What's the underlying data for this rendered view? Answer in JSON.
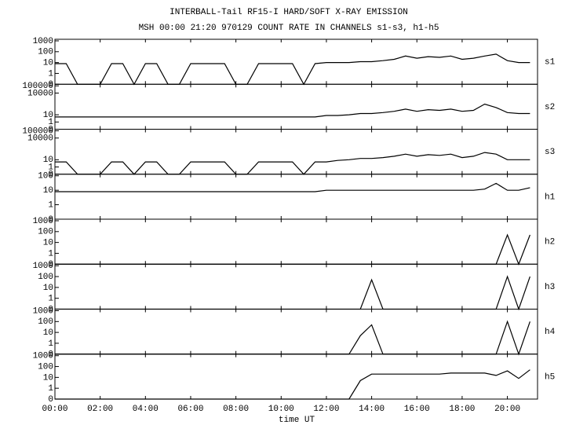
{
  "chart_data": {
    "type": "line",
    "title": "INTERBALL-Tail RF15-I HARD/SOFT X-RAY EMISSION",
    "subtitle": "MSH 00:00 21:20 970129  COUNT RATE IN CHANNELS s1-s3, h1-h5",
    "x_label": "time UT",
    "log_scale": true,
    "xlim": [
      0,
      21.333
    ],
    "xticks": [
      {
        "value": 0,
        "label": "00:00"
      },
      {
        "value": 2,
        "label": "02:00"
      },
      {
        "value": 4,
        "label": "04:00"
      },
      {
        "value": 6,
        "label": "06:00"
      },
      {
        "value": 8,
        "label": "08:00"
      },
      {
        "value": 10,
        "label": "10:00"
      },
      {
        "value": 12,
        "label": "12:00"
      },
      {
        "value": 14,
        "label": "14:00"
      },
      {
        "value": 16,
        "label": "16:00"
      },
      {
        "value": 18,
        "label": "18:00"
      },
      {
        "value": 20,
        "label": "20:00"
      }
    ],
    "x": [
      0,
      0.5,
      1,
      1.5,
      2,
      2.5,
      3,
      3.5,
      4,
      4.5,
      5,
      5.5,
      6,
      6.5,
      7,
      7.5,
      8,
      8.5,
      9,
      9.5,
      10,
      10.5,
      11,
      11.5,
      12,
      12.5,
      13,
      13.5,
      14,
      14.5,
      15,
      15.5,
      16,
      16.5,
      17,
      17.5,
      18,
      18.5,
      19,
      19.5,
      20,
      20.5,
      21
    ],
    "panels": [
      {
        "ylim": [
          0,
          1000
        ],
        "yticks": [
          0,
          1,
          10,
          100,
          1000
        ],
        "series": [
          {
            "name": "s1",
            "color": "#000000",
            "values": [
              8,
              8,
              0,
              0,
              0,
              8,
              8,
              0,
              8,
              8,
              0,
              0,
              8,
              8,
              8,
              8,
              0,
              0,
              8,
              8,
              8,
              8,
              0,
              8,
              10,
              10,
              10,
              12,
              12,
              15,
              20,
              40,
              25,
              35,
              30,
              40,
              20,
              25,
              40,
              60,
              15,
              10,
              10
            ]
          }
        ]
      },
      {
        "ylim": [
          0,
          100000
        ],
        "yticks": [
          0,
          1,
          10,
          10000,
          100000
        ],
        "series": [
          {
            "name": "s2",
            "color": "#000000",
            "values": [
              5,
              5,
              5,
              5,
              5,
              5,
              5,
              5,
              5,
              5,
              5,
              5,
              5,
              5,
              5,
              5,
              5,
              5,
              5,
              5,
              5,
              5,
              5,
              5,
              8,
              8,
              10,
              15,
              15,
              20,
              30,
              60,
              30,
              50,
              40,
              60,
              30,
              40,
              300,
              100,
              20,
              15,
              15
            ]
          }
        ]
      },
      {
        "ylim": [
          0,
          100000
        ],
        "yticks": [
          0,
          1,
          10,
          10000,
          100000
        ],
        "series": [
          {
            "name": "s3",
            "color": "#000000",
            "values": [
              5,
              5,
              0,
              0,
              0,
              5,
              5,
              0,
              5,
              5,
              0,
              0,
              5,
              5,
              5,
              5,
              0,
              0,
              5,
              5,
              5,
              5,
              0,
              5,
              5,
              8,
              10,
              15,
              15,
              20,
              30,
              60,
              30,
              50,
              40,
              60,
              20,
              30,
              100,
              60,
              10,
              10,
              10
            ]
          }
        ]
      },
      {
        "ylim": [
          0,
          100
        ],
        "yticks": [
          0,
          1,
          10,
          100
        ],
        "series": [
          {
            "name": "h1",
            "color": "#000000",
            "values": [
              8,
              8,
              8,
              8,
              8,
              8,
              8,
              8,
              8,
              8,
              8,
              8,
              8,
              8,
              8,
              8,
              8,
              8,
              8,
              8,
              8,
              8,
              8,
              8,
              10,
              10,
              10,
              10,
              10,
              10,
              10,
              10,
              10,
              10,
              10,
              10,
              10,
              10,
              12,
              30,
              10,
              10,
              15
            ]
          }
        ]
      },
      {
        "ylim": [
          0,
          1000
        ],
        "yticks": [
          0,
          1,
          10,
          100,
          1000
        ],
        "series": [
          {
            "name": "h2",
            "color": "#000000",
            "values": [
              0,
              0,
              0,
              0,
              0,
              0,
              0,
              0,
              0,
              0,
              0,
              0,
              0,
              0,
              0,
              0,
              0,
              0,
              0,
              0,
              0,
              0,
              0,
              0,
              0,
              0,
              0,
              0,
              0,
              0,
              0,
              0,
              0,
              0,
              0,
              0,
              0,
              0,
              0,
              0,
              50,
              0,
              50
            ]
          }
        ]
      },
      {
        "ylim": [
          0,
          1000
        ],
        "yticks": [
          0,
          1,
          10,
          100,
          1000
        ],
        "series": [
          {
            "name": "h3",
            "color": "#000000",
            "values": [
              0,
              0,
              0,
              0,
              0,
              0,
              0,
              0,
              0,
              0,
              0,
              0,
              0,
              0,
              0,
              0,
              0,
              0,
              0,
              0,
              0,
              0,
              0,
              0,
              0,
              0,
              0,
              0,
              50,
              0,
              0,
              0,
              0,
              0,
              0,
              0,
              0,
              0,
              0,
              0,
              100,
              0,
              100
            ]
          }
        ]
      },
      {
        "ylim": [
          0,
          1000
        ],
        "yticks": [
          0,
          1,
          10,
          100,
          1000
        ],
        "series": [
          {
            "name": "h4",
            "color": "#000000",
            "values": [
              0,
              0,
              0,
              0,
              0,
              0,
              0,
              0,
              0,
              0,
              0,
              0,
              0,
              0,
              0,
              0,
              0,
              0,
              0,
              0,
              0,
              0,
              0,
              0,
              0,
              0,
              0,
              5,
              50,
              0,
              0,
              0,
              0,
              0,
              0,
              0,
              0,
              0,
              0,
              0,
              100,
              0,
              100
            ]
          }
        ]
      },
      {
        "ylim": [
          0,
          1000
        ],
        "yticks": [
          0,
          1,
          10,
          100,
          1000
        ],
        "series": [
          {
            "name": "h5",
            "color": "#000000",
            "values": [
              0,
              0,
              0,
              0,
              0,
              0,
              0,
              0,
              0,
              0,
              0,
              0,
              0,
              0,
              0,
              0,
              0,
              0,
              0,
              0,
              0,
              0,
              0,
              0,
              0,
              0,
              0,
              5,
              20,
              20,
              20,
              20,
              20,
              20,
              20,
              25,
              25,
              25,
              25,
              15,
              40,
              8,
              50
            ]
          }
        ]
      }
    ]
  }
}
